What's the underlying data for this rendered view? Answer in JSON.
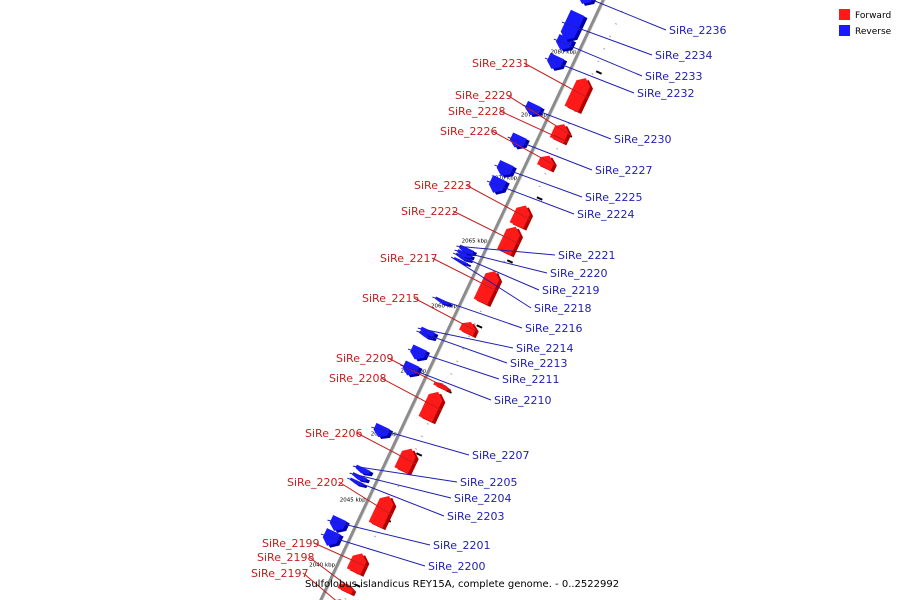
{
  "legend": [
    {
      "label": "Forward",
      "color": "#ff1a1a"
    },
    {
      "label": "Reverse",
      "color": "#1a1aff"
    }
  ],
  "colors": {
    "forward": "#ff1a1a",
    "forward_dark": "#b00000",
    "reverse": "#1a1aff",
    "reverse_dark": "#0000a8",
    "forward_label": "#c41e1e",
    "reverse_label": "#1f1fb0",
    "backbone": "#8c8c8c"
  },
  "caption": "Sulfolobus islandicus REY15A, complete genome. - 0..2522992",
  "ticks": [
    "2040 kbp",
    "2045 kbp",
    "2050 kbp",
    "2055 kbp",
    "2060 kbp",
    "2065 kbp",
    "2070 kbp",
    "2075 kbp",
    "2080 kbp"
  ],
  "genes": [
    {
      "name": "SiRe_2197",
      "strand": "forward"
    },
    {
      "name": "SiRe_2198",
      "strand": "forward"
    },
    {
      "name": "SiRe_2199",
      "strand": "forward"
    },
    {
      "name": "SiRe_2200",
      "strand": "reverse"
    },
    {
      "name": "SiRe_2201",
      "strand": "reverse"
    },
    {
      "name": "SiRe_2202",
      "strand": "forward"
    },
    {
      "name": "SiRe_2203",
      "strand": "reverse"
    },
    {
      "name": "SiRe_2204",
      "strand": "reverse"
    },
    {
      "name": "SiRe_2205",
      "strand": "reverse"
    },
    {
      "name": "SiRe_2206",
      "strand": "forward"
    },
    {
      "name": "SiRe_2207",
      "strand": "reverse"
    },
    {
      "name": "SiRe_2208",
      "strand": "forward"
    },
    {
      "name": "SiRe_2209",
      "strand": "forward"
    },
    {
      "name": "SiRe_2210",
      "strand": "reverse"
    },
    {
      "name": "SiRe_2211",
      "strand": "reverse"
    },
    {
      "name": "SiRe_2213",
      "strand": "reverse"
    },
    {
      "name": "SiRe_2214",
      "strand": "reverse"
    },
    {
      "name": "SiRe_2215",
      "strand": "forward"
    },
    {
      "name": "SiRe_2216",
      "strand": "reverse"
    },
    {
      "name": "SiRe_2217",
      "strand": "forward"
    },
    {
      "name": "SiRe_2218",
      "strand": "reverse"
    },
    {
      "name": "SiRe_2219",
      "strand": "reverse"
    },
    {
      "name": "SiRe_2220",
      "strand": "reverse"
    },
    {
      "name": "SiRe_2221",
      "strand": "reverse"
    },
    {
      "name": "SiRe_2222",
      "strand": "forward"
    },
    {
      "name": "SiRe_2223",
      "strand": "forward"
    },
    {
      "name": "SiRe_2224",
      "strand": "reverse"
    },
    {
      "name": "SiRe_2225",
      "strand": "reverse"
    },
    {
      "name": "SiRe_2226",
      "strand": "forward"
    },
    {
      "name": "SiRe_2227",
      "strand": "reverse"
    },
    {
      "name": "SiRe_2228",
      "strand": "forward"
    },
    {
      "name": "SiRe_2229",
      "strand": "forward"
    },
    {
      "name": "SiRe_2230",
      "strand": "reverse"
    },
    {
      "name": "SiRe_2231",
      "strand": "forward"
    },
    {
      "name": "SiRe_2232",
      "strand": "reverse"
    },
    {
      "name": "SiRe_2233",
      "strand": "reverse"
    },
    {
      "name": "SiRe_2234",
      "strand": "reverse"
    },
    {
      "name": "SiRe_2236",
      "strand": "reverse"
    }
  ]
}
